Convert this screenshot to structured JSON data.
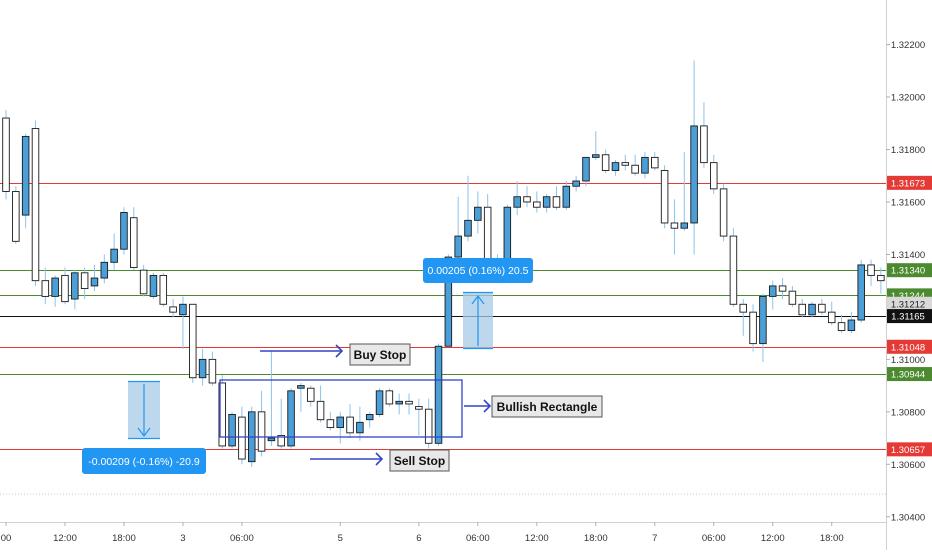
{
  "chart_data": {
    "type": "candlestick",
    "title": "",
    "xlabel": "",
    "ylabel": "",
    "ylim": [
      1.3038,
      1.3237
    ],
    "grid": false,
    "y_ticks": [
      "1.32200",
      "1.32000",
      "1.31800",
      "1.31600",
      "1.31400",
      "1.31000",
      "1.30800",
      "1.30600",
      "1.30400"
    ],
    "x_ticks": [
      {
        "label": "00",
        "bar": 0
      },
      {
        "label": "12:00",
        "bar": 6
      },
      {
        "label": "18:00",
        "bar": 12
      },
      {
        "label": "3",
        "bar": 18
      },
      {
        "label": "06:00",
        "bar": 24
      },
      {
        "label": "5",
        "bar": 34
      },
      {
        "label": "6",
        "bar": 42
      },
      {
        "label": "06:00",
        "bar": 48
      },
      {
        "label": "12:00",
        "bar": 54
      },
      {
        "label": "18:00",
        "bar": 60
      },
      {
        "label": "7",
        "bar": 66
      },
      {
        "label": "06:00",
        "bar": 72
      },
      {
        "label": "12:00",
        "bar": 78
      },
      {
        "label": "18:00",
        "bar": 84
      }
    ],
    "colors": {
      "bull": "#4a9fd8",
      "bear": "#ffffff",
      "wick": "#8cc3ea",
      "outline": "#1a1a1a",
      "red_line": "#e53935",
      "green_line": "#4c8a2f",
      "black_line": "#111111",
      "arrow": "#3344cc",
      "measure_fill": "#a7cbe6",
      "label_blue": "#2196f3",
      "axis_text": "#333333"
    },
    "levels": [
      {
        "value": 1.31673,
        "label": "1.31673",
        "kind": "red"
      },
      {
        "value": 1.3134,
        "label": "1.31340",
        "kind": "green"
      },
      {
        "value": 1.31244,
        "label": "1.31244",
        "kind": "green"
      },
      {
        "value": 1.31212,
        "label": "1.31212",
        "kind": "gray"
      },
      {
        "value": 1.31165,
        "label": "1.31165",
        "kind": "black"
      },
      {
        "value": 1.31048,
        "label": "1.31048",
        "kind": "red"
      },
      {
        "value": 1.30944,
        "label": "1.30944",
        "kind": "green"
      },
      {
        "value": 1.30657,
        "label": "1.30657",
        "kind": "red"
      }
    ],
    "candles": [
      [
        1.3192,
        1.3195,
        1.3161,
        1.3164
      ],
      [
        1.3164,
        1.3166,
        1.3144,
        1.3145
      ],
      [
        1.3155,
        1.3186,
        1.315,
        1.3185
      ],
      [
        1.3188,
        1.3191,
        1.3128,
        1.313
      ],
      [
        1.313,
        1.3135,
        1.3121,
        1.3124
      ],
      [
        1.3124,
        1.3132,
        1.312,
        1.3131
      ],
      [
        1.3132,
        1.3135,
        1.3121,
        1.3122
      ],
      [
        1.3123,
        1.3134,
        1.3119,
        1.3133
      ],
      [
        1.3133,
        1.3135,
        1.3123,
        1.3127
      ],
      [
        1.3128,
        1.3136,
        1.3126,
        1.3131
      ],
      [
        1.3131,
        1.314,
        1.3129,
        1.3137
      ],
      [
        1.3137,
        1.3148,
        1.3134,
        1.3142
      ],
      [
        1.3142,
        1.3158,
        1.314,
        1.3156
      ],
      [
        1.3154,
        1.3158,
        1.3134,
        1.3135
      ],
      [
        1.3134,
        1.3136,
        1.3124,
        1.3125
      ],
      [
        1.3124,
        1.3133,
        1.3123,
        1.3132
      ],
      [
        1.3132,
        1.3133,
        1.312,
        1.3121
      ],
      [
        1.312,
        1.3123,
        1.3116,
        1.3118
      ],
      [
        1.3117,
        1.3124,
        1.3104,
        1.3121
      ],
      [
        1.3121,
        1.3121,
        1.3091,
        1.3093
      ],
      [
        1.3093,
        1.3104,
        1.309,
        1.31
      ],
      [
        1.31,
        1.3103,
        1.309,
        1.3091
      ],
      [
        1.3091,
        1.3094,
        1.3066,
        1.3067
      ],
      [
        1.3067,
        1.308,
        1.3066,
        1.3079
      ],
      [
        1.3078,
        1.3082,
        1.306,
        1.3062
      ],
      [
        1.3061,
        1.3082,
        1.3059,
        1.308
      ],
      [
        1.308,
        1.3088,
        1.3063,
        1.3065
      ],
      [
        1.3069,
        1.3103,
        1.3067,
        1.307
      ],
      [
        1.3071,
        1.3085,
        1.3066,
        1.3067
      ],
      [
        1.3067,
        1.3089,
        1.3066,
        1.3088
      ],
      [
        1.3089,
        1.3091,
        1.308,
        1.309
      ],
      [
        1.3089,
        1.309,
        1.3082,
        1.3084
      ],
      [
        1.3084,
        1.309,
        1.3076,
        1.3077
      ],
      [
        1.3077,
        1.308,
        1.3073,
        1.3074
      ],
      [
        1.3074,
        1.308,
        1.3068,
        1.3078
      ],
      [
        1.3078,
        1.3083,
        1.307,
        1.3072
      ],
      [
        1.3072,
        1.3082,
        1.3069,
        1.3076
      ],
      [
        1.3077,
        1.308,
        1.3074,
        1.3079
      ],
      [
        1.3079,
        1.3089,
        1.3078,
        1.3088
      ],
      [
        1.3088,
        1.3089,
        1.3082,
        1.3083
      ],
      [
        1.3083,
        1.3087,
        1.3079,
        1.3084
      ],
      [
        1.3084,
        1.3087,
        1.3079,
        1.3083
      ],
      [
        1.3082,
        1.3085,
        1.3071,
        1.3081
      ],
      [
        1.3081,
        1.3085,
        1.3066,
        1.3068
      ],
      [
        1.3068,
        1.3106,
        1.3067,
        1.3105
      ],
      [
        1.3105,
        1.314,
        1.3105,
        1.3139
      ],
      [
        1.3139,
        1.3162,
        1.3138,
        1.3147
      ],
      [
        1.3147,
        1.317,
        1.3145,
        1.3153
      ],
      [
        1.3153,
        1.3164,
        1.3148,
        1.3158
      ],
      [
        1.3158,
        1.3163,
        1.3131,
        1.3133
      ],
      [
        1.3133,
        1.314,
        1.3129,
        1.3132
      ],
      [
        1.3131,
        1.3159,
        1.313,
        1.3158
      ],
      [
        1.3158,
        1.3168,
        1.3155,
        1.3162
      ],
      [
        1.3162,
        1.3166,
        1.3158,
        1.316
      ],
      [
        1.316,
        1.3164,
        1.3156,
        1.3158
      ],
      [
        1.3158,
        1.3163,
        1.3156,
        1.3162
      ],
      [
        1.3162,
        1.3166,
        1.3157,
        1.3158
      ],
      [
        1.3158,
        1.3168,
        1.3157,
        1.3166
      ],
      [
        1.3166,
        1.317,
        1.3164,
        1.3168
      ],
      [
        1.3168,
        1.3177,
        1.3166,
        1.3177
      ],
      [
        1.3177,
        1.3187,
        1.3176,
        1.3178
      ],
      [
        1.3178,
        1.318,
        1.3171,
        1.3172
      ],
      [
        1.3172,
        1.3176,
        1.317,
        1.3175
      ],
      [
        1.3175,
        1.3178,
        1.3172,
        1.3174
      ],
      [
        1.3174,
        1.3178,
        1.317,
        1.3171
      ],
      [
        1.3171,
        1.3179,
        1.3169,
        1.3177
      ],
      [
        1.3177,
        1.3179,
        1.3172,
        1.3173
      ],
      [
        1.3172,
        1.3174,
        1.315,
        1.3152
      ],
      [
        1.3152,
        1.3161,
        1.314,
        1.315
      ],
      [
        1.315,
        1.3179,
        1.3149,
        1.3152
      ],
      [
        1.3152,
        1.3214,
        1.314,
        1.3189
      ],
      [
        1.3189,
        1.3198,
        1.3173,
        1.3175
      ],
      [
        1.3175,
        1.3178,
        1.3163,
        1.3165
      ],
      [
        1.3165,
        1.3167,
        1.3145,
        1.3147
      ],
      [
        1.3147,
        1.315,
        1.312,
        1.3121
      ],
      [
        1.3121,
        1.3123,
        1.3109,
        1.3118
      ],
      [
        1.3118,
        1.3121,
        1.3103,
        1.3106
      ],
      [
        1.3106,
        1.3125,
        1.3099,
        1.3124
      ],
      [
        1.3124,
        1.313,
        1.3119,
        1.3128
      ],
      [
        1.3128,
        1.3131,
        1.3123,
        1.3126
      ],
      [
        1.3126,
        1.3128,
        1.312,
        1.3121
      ],
      [
        1.3121,
        1.3123,
        1.3116,
        1.3117
      ],
      [
        1.3117,
        1.3122,
        1.3116,
        1.3121
      ],
      [
        1.3121,
        1.3123,
        1.3117,
        1.3118
      ],
      [
        1.3118,
        1.3122,
        1.3113,
        1.3114
      ],
      [
        1.3114,
        1.3117,
        1.311,
        1.3111
      ],
      [
        1.3111,
        1.3118,
        1.311,
        1.3115
      ],
      [
        1.3115,
        1.3138,
        1.3114,
        1.3136
      ],
      [
        1.3136,
        1.3138,
        1.3128,
        1.3132
      ],
      [
        1.3132,
        1.3135,
        1.3125,
        1.313
      ]
    ],
    "annotations": {
      "buy_stop": "Buy Stop",
      "bullish_rectangle": "Bullish Rectangle",
      "sell_stop": "Sell Stop",
      "measure_up": "0.00205 (0.16%) 20.5",
      "measure_down": "-0.00209 (-0.16%) -20.9"
    }
  }
}
